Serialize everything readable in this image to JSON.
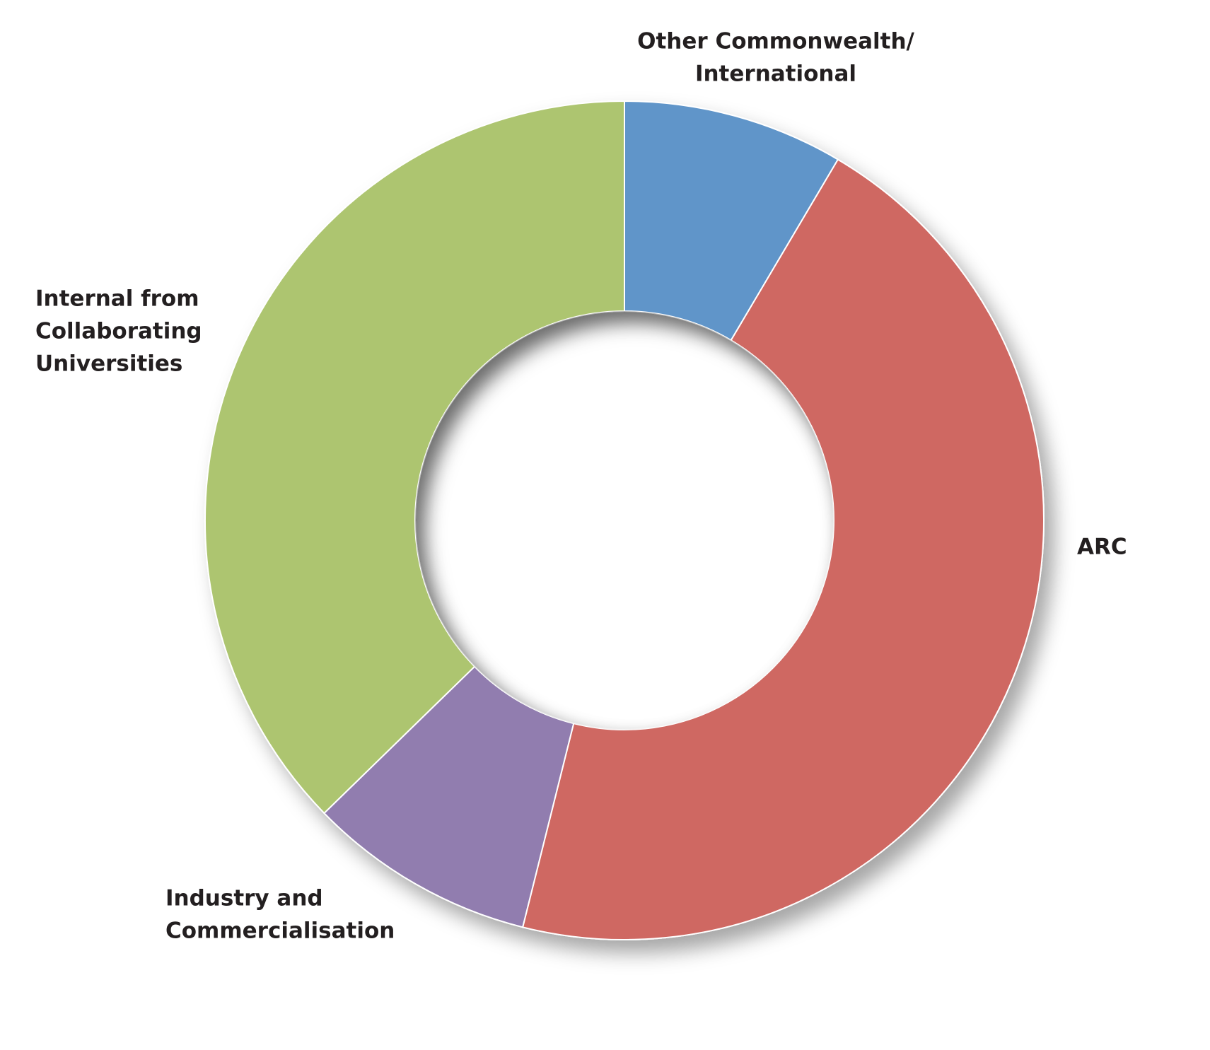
{
  "chart_data": {
    "type": "donut",
    "categories": [
      [
        "Other Commonwealth/",
        "International"
      ],
      [
        "ARC"
      ],
      [
        "Industry and",
        "Commercialisation"
      ],
      [
        "Internal from",
        "Collaborating",
        "Universities"
      ]
    ],
    "values": [
      8.5,
      45.4,
      8.8,
      37.3
    ],
    "colors": [
      "#6095c9",
      "#cf6762",
      "#917daf",
      "#adc56f"
    ]
  }
}
